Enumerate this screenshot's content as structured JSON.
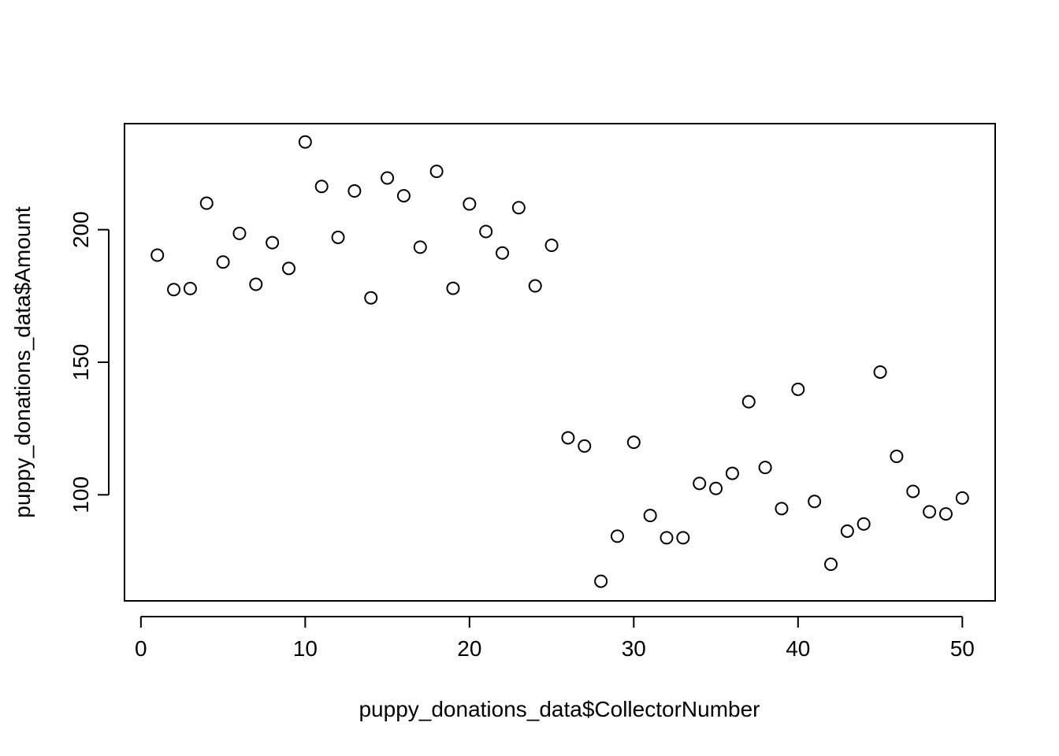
{
  "chart_data": {
    "type": "scatter",
    "title": "",
    "xlabel": "puppy_donations_data$CollectorNumber",
    "ylabel": "puppy_donations_data$Amount",
    "xlim": [
      -1,
      52
    ],
    "ylim": [
      60,
      240
    ],
    "x_ticks": [
      0,
      10,
      20,
      30,
      40,
      50
    ],
    "y_ticks": [
      100,
      150,
      200
    ],
    "grid": false,
    "legend": "none",
    "marker": "open-circle",
    "colors": {
      "marker": "#000000",
      "axis": "#000000",
      "background": "#ffffff"
    },
    "points": [
      {
        "x": 1,
        "y": 190.4
      },
      {
        "x": 2,
        "y": 177.4
      },
      {
        "x": 3,
        "y": 177.8
      },
      {
        "x": 4,
        "y": 210.0
      },
      {
        "x": 5,
        "y": 187.8
      },
      {
        "x": 6,
        "y": 198.6
      },
      {
        "x": 7,
        "y": 179.4
      },
      {
        "x": 8,
        "y": 195.1
      },
      {
        "x": 9,
        "y": 185.4
      },
      {
        "x": 10,
        "y": 233.1
      },
      {
        "x": 11,
        "y": 216.3
      },
      {
        "x": 12,
        "y": 197.1
      },
      {
        "x": 13,
        "y": 214.6
      },
      {
        "x": 14,
        "y": 174.3
      },
      {
        "x": 15,
        "y": 219.5
      },
      {
        "x": 16,
        "y": 212.8
      },
      {
        "x": 17,
        "y": 193.4
      },
      {
        "x": 18,
        "y": 222.0
      },
      {
        "x": 19,
        "y": 177.9
      },
      {
        "x": 20,
        "y": 209.7
      },
      {
        "x": 21,
        "y": 199.3
      },
      {
        "x": 22,
        "y": 191.2
      },
      {
        "x": 23,
        "y": 208.3
      },
      {
        "x": 24,
        "y": 178.8
      },
      {
        "x": 25,
        "y": 194.1
      },
      {
        "x": 26,
        "y": 121.5
      },
      {
        "x": 27,
        "y": 118.4
      },
      {
        "x": 28,
        "y": 67.4
      },
      {
        "x": 29,
        "y": 84.4
      },
      {
        "x": 30,
        "y": 119.8
      },
      {
        "x": 31,
        "y": 92.2
      },
      {
        "x": 32,
        "y": 83.8
      },
      {
        "x": 33,
        "y": 83.8
      },
      {
        "x": 34,
        "y": 104.3
      },
      {
        "x": 35,
        "y": 102.4
      },
      {
        "x": 36,
        "y": 108.1
      },
      {
        "x": 37,
        "y": 135.1
      },
      {
        "x": 38,
        "y": 110.3
      },
      {
        "x": 39,
        "y": 94.8
      },
      {
        "x": 40,
        "y": 139.8
      },
      {
        "x": 41,
        "y": 97.5
      },
      {
        "x": 42,
        "y": 73.8
      },
      {
        "x": 43,
        "y": 86.3
      },
      {
        "x": 44,
        "y": 89.0
      },
      {
        "x": 45,
        "y": 146.3
      },
      {
        "x": 46,
        "y": 114.5
      },
      {
        "x": 47,
        "y": 101.3
      },
      {
        "x": 48,
        "y": 93.6
      },
      {
        "x": 49,
        "y": 92.8
      },
      {
        "x": 50,
        "y": 98.8
      }
    ]
  }
}
